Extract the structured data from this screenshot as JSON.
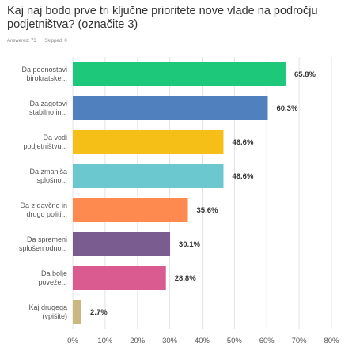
{
  "survey": {
    "question": "Kaj naj bodo prve tri ključne prioritete nove vlade na področju podjetništva? (označite 3)",
    "answered_label": "Answered: 73",
    "skipped_label": "Skipped: 0"
  },
  "chart_data": {
    "type": "bar",
    "orientation": "horizontal",
    "title": "",
    "xlabel": "",
    "ylabel": "",
    "xlim": [
      0,
      80
    ],
    "ticks": [
      "0%",
      "10%",
      "20%",
      "30%",
      "40%",
      "50%",
      "60%",
      "70%",
      "80%"
    ],
    "grid": true,
    "categories": [
      [
        "Da poenostavi",
        "birokratske..."
      ],
      [
        "Da zagotovi",
        "stabilno in..."
      ],
      [
        "Da vodi",
        "podjetništvu..."
      ],
      [
        "Da zmanjša",
        "splošno..."
      ],
      [
        "Da z davčno in",
        "drugo politi..."
      ],
      [
        "Da spremeni",
        "splošen odno..."
      ],
      [
        "Da bolje",
        "poveže..."
      ],
      [
        "Kaj drugega",
        "(vpišite)"
      ]
    ],
    "values": [
      65.8,
      60.3,
      46.6,
      46.6,
      35.6,
      30.1,
      28.8,
      2.7
    ],
    "value_labels": [
      "65.8%",
      "60.3%",
      "46.6%",
      "46.6%",
      "35.6%",
      "30.1%",
      "28.8%",
      "2.7%"
    ],
    "colors": [
      "#1ec87a",
      "#5080bd",
      "#f5bf17",
      "#6cc8cf",
      "#ff8a4f",
      "#7b5c90",
      "#d95b8f",
      "#c9b880"
    ]
  }
}
